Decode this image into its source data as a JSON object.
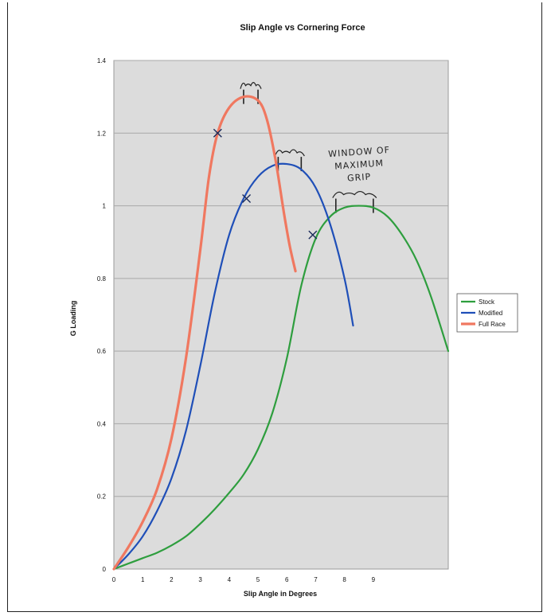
{
  "chart_data": {
    "type": "line",
    "title": "Slip Angle vs Cornering Force",
    "xlabel": "Slip Angle in Degrees",
    "ylabel": "G Loading",
    "xlim": [
      0,
      11.6
    ],
    "ylim": [
      0,
      1.4
    ],
    "xticks": [
      0,
      1,
      2,
      3,
      4,
      5,
      6,
      7,
      8,
      9
    ],
    "yticks": [
      0,
      0.2,
      0.4,
      0.6,
      0.8,
      1,
      1.2,
      1.4
    ],
    "grid": "horizontal",
    "legend_position": "right",
    "series": [
      {
        "name": "Stock",
        "color": "#2e9e3e",
        "x": [
          0,
          0.5,
          1,
          1.5,
          2,
          2.5,
          3,
          3.5,
          4,
          4.5,
          5,
          5.5,
          6,
          6.5,
          7,
          7.5,
          8,
          8.5,
          9,
          9.5,
          10,
          10.5,
          11,
          11.6
        ],
        "y": [
          0,
          0.015,
          0.03,
          0.045,
          0.065,
          0.09,
          0.125,
          0.165,
          0.21,
          0.26,
          0.33,
          0.43,
          0.58,
          0.78,
          0.91,
          0.97,
          0.995,
          1.0,
          0.995,
          0.97,
          0.92,
          0.85,
          0.75,
          0.6
        ]
      },
      {
        "name": "Modified",
        "color": "#1f4fb8",
        "x": [
          0,
          0.5,
          1,
          1.5,
          2,
          2.5,
          3,
          3.5,
          4,
          4.5,
          5,
          5.5,
          6,
          6.5,
          7,
          7.5,
          8,
          8.3
        ],
        "y": [
          0,
          0.04,
          0.09,
          0.16,
          0.25,
          0.38,
          0.56,
          0.76,
          0.92,
          1.02,
          1.08,
          1.11,
          1.115,
          1.1,
          1.05,
          0.95,
          0.8,
          0.67
        ]
      },
      {
        "name": "Full Race",
        "color": "#f07860",
        "x": [
          0,
          0.5,
          1,
          1.5,
          2,
          2.5,
          3,
          3.3,
          3.6,
          4,
          4.5,
          5,
          5.3,
          5.6,
          5.9,
          6.1,
          6.3
        ],
        "y": [
          0,
          0.06,
          0.13,
          0.22,
          0.36,
          0.58,
          0.88,
          1.08,
          1.2,
          1.27,
          1.3,
          1.29,
          1.24,
          1.13,
          0.98,
          0.89,
          0.82
        ]
      }
    ],
    "markers": [
      {
        "series": "Full Race",
        "x": 3.6,
        "y": 1.2
      },
      {
        "series": "Modified",
        "x": 4.6,
        "y": 1.02
      },
      {
        "series": "Stock",
        "x": 6.9,
        "y": 0.92
      }
    ],
    "peak_windows": [
      {
        "series": "Full Race",
        "x_start": 4.5,
        "x_end": 5.0,
        "y": 1.3
      },
      {
        "series": "Modified",
        "x_start": 5.7,
        "x_end": 6.5,
        "y": 1.115
      },
      {
        "series": "Stock",
        "x_start": 7.7,
        "x_end": 9.0,
        "y": 1.0
      }
    ],
    "annotations": [
      {
        "text_lines": [
          "WINDOW OF",
          "MAXIMUM",
          "GRIP"
        ]
      }
    ]
  }
}
